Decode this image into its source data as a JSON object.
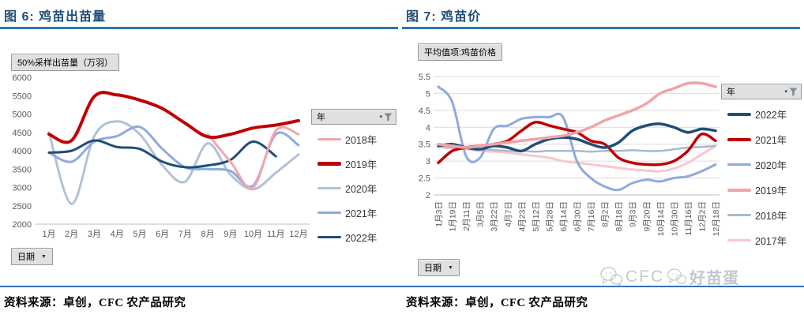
{
  "page": {
    "background": "#FFFFFF"
  },
  "icons": {
    "legend_filter": "filter-funnel-icon",
    "axis_dropdown": "chevron-down-icon",
    "watermark_icon": "wechat-icon"
  },
  "watermark": {
    "brand": "CFC",
    "account": "好苗蛋"
  },
  "chart_data": [
    {
      "id": "fig6",
      "type": "line",
      "title": "图 6: 鸡苗出苗量",
      "field_button": "50%采样出苗量（万羽）",
      "legend_header": "年",
      "axis_field": "日期",
      "source": "资料来源：卓创，CFC 农产品研究",
      "xlabel": "日期",
      "ylabel": "50%采样出苗量（万羽）",
      "ylim": [
        2000,
        6000
      ],
      "ytick_step": 500,
      "grid": false,
      "legend_position": "right",
      "categories": [
        "1月",
        "2月",
        "3月",
        "4月",
        "5月",
        "6月",
        "7月",
        "8月",
        "9月",
        "10月",
        "11月",
        "12月"
      ],
      "series": [
        {
          "name": "2018年",
          "color": "#F1A7AB",
          "width": 3,
          "z": 4,
          "values": [
            null,
            null,
            null,
            null,
            null,
            null,
            null,
            4450,
            3700,
            3000,
            4550,
            4450
          ]
        },
        {
          "name": "2019年",
          "color": "#C00000",
          "width": 4,
          "z": 5,
          "values": [
            4450,
            4280,
            5480,
            5520,
            5380,
            5150,
            4750,
            4380,
            4450,
            4620,
            4700,
            4820
          ]
        },
        {
          "name": "2020年",
          "color": "#B3C1D6",
          "width": 3,
          "z": 1,
          "values": [
            4500,
            2550,
            4400,
            4800,
            4450,
            3600,
            3160,
            4200,
            3350,
            2950,
            3400,
            3900
          ]
        },
        {
          "name": "2021年",
          "color": "#8FAADC",
          "width": 3,
          "z": 2,
          "values": [
            3950,
            3700,
            4250,
            4400,
            4650,
            4050,
            3550,
            3500,
            3450,
            3050,
            4450,
            4150
          ]
        },
        {
          "name": "2022年",
          "color": "#1F4E79",
          "width": 3,
          "z": 3,
          "values": [
            3950,
            4000,
            4280,
            4100,
            4050,
            3700,
            3550,
            3600,
            3750,
            4250,
            3850,
            null
          ]
        }
      ]
    },
    {
      "id": "fig7",
      "type": "line",
      "title": "图 7: 鸡苗价",
      "field_button": "平均值项:鸡苗价格",
      "legend_header": "年",
      "axis_field": "日期",
      "source": "资料来源：卓创，CFC 农产品研究",
      "xlabel": "日期",
      "ylabel": "平均值项:鸡苗价格",
      "ylim": [
        2,
        5.5
      ],
      "ytick_step": 0.5,
      "grid": true,
      "legend_position": "right",
      "categories": [
        "1月3日",
        "1月19日",
        "2月11日",
        "3月5日",
        "3月22日",
        "4月7日",
        "4月23日",
        "5月12日",
        "5月28日",
        "6月14日",
        "6月30日",
        "7月16日",
        "8月2日",
        "8月18日",
        "9月3日",
        "9月20日",
        "10月14日",
        "10月30日",
        "11月16日",
        "12月2日",
        "12月18日"
      ],
      "series": [
        {
          "name": "2022年",
          "color": "#1F4E79",
          "width": 3.5,
          "z": 5,
          "values": [
            3.45,
            3.5,
            3.4,
            3.35,
            3.45,
            3.4,
            3.3,
            3.5,
            3.65,
            3.7,
            3.65,
            3.5,
            3.4,
            3.55,
            3.9,
            4.05,
            4.1,
            4.0,
            3.85,
            3.95,
            3.9
          ]
        },
        {
          "name": "2021年",
          "color": "#C00000",
          "width": 3.5,
          "z": 4,
          "values": [
            2.95,
            3.3,
            3.4,
            3.45,
            3.5,
            3.6,
            3.9,
            4.15,
            4.05,
            3.95,
            3.85,
            3.6,
            3.5,
            3.1,
            2.95,
            2.9,
            2.9,
            3.0,
            3.3,
            3.8,
            3.6
          ]
        },
        {
          "name": "2020年",
          "color": "#8FAADC",
          "width": 3,
          "z": 3,
          "values": [
            5.2,
            4.75,
            3.15,
            3.1,
            3.95,
            4.05,
            4.25,
            4.3,
            4.3,
            4.3,
            3.0,
            2.5,
            2.25,
            2.15,
            2.35,
            2.45,
            2.4,
            2.5,
            2.55,
            2.7,
            2.9
          ]
        },
        {
          "name": "2019年",
          "color": "#F1A3A8",
          "width": 3.5,
          "z": 6,
          "values": [
            3.5,
            3.45,
            3.4,
            3.45,
            3.5,
            3.55,
            3.6,
            3.65,
            3.7,
            3.75,
            3.85,
            4.0,
            4.2,
            4.35,
            4.5,
            4.7,
            5.0,
            5.15,
            5.3,
            5.3,
            5.2
          ]
        },
        {
          "name": "2018年",
          "color": "#A9B9CE",
          "width": 2.5,
          "z": 2,
          "values": [
            3.45,
            3.4,
            3.38,
            3.35,
            3.33,
            3.3,
            3.3,
            3.28,
            3.3,
            3.3,
            3.3,
            3.28,
            3.3,
            3.3,
            3.32,
            3.3,
            3.3,
            3.35,
            3.4,
            3.42,
            3.45
          ]
        },
        {
          "name": "2017年",
          "color": "#F7C8CC",
          "width": 3,
          "z": 1,
          "values": [
            3.42,
            3.38,
            3.35,
            3.3,
            3.28,
            3.25,
            3.2,
            3.15,
            3.1,
            3.0,
            2.95,
            2.9,
            2.85,
            2.8,
            2.75,
            2.72,
            2.7,
            2.78,
            2.95,
            3.2,
            3.45
          ]
        }
      ]
    }
  ]
}
